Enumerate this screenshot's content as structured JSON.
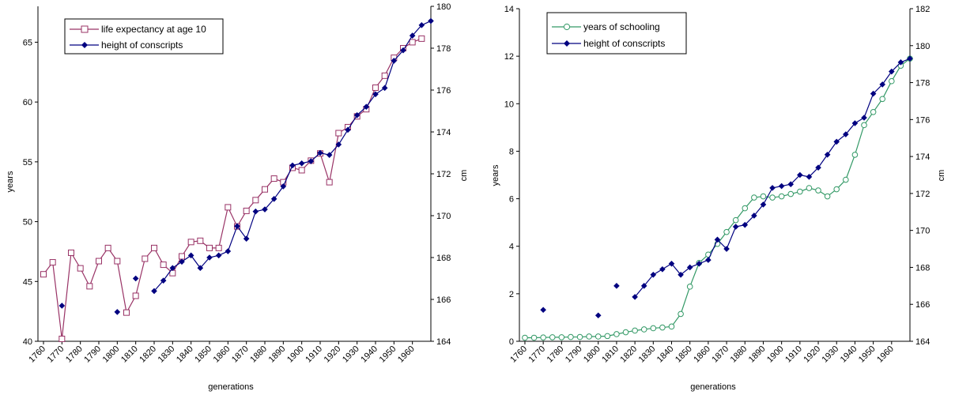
{
  "colors": {
    "maroon": "#993366",
    "navy": "#000080",
    "green": "#339966",
    "axis": "#000000"
  },
  "chart_data": [
    {
      "type": "line",
      "xlabel": "generations",
      "ylabel": "years",
      "y2label": "cm",
      "xlim": [
        1757,
        1970
      ],
      "ylim": [
        40,
        68
      ],
      "y2lim": [
        164,
        180
      ],
      "x_ticks": [
        1760,
        1770,
        1780,
        1790,
        1800,
        1810,
        1820,
        1830,
        1840,
        1850,
        1860,
        1870,
        1880,
        1890,
        1900,
        1910,
        1920,
        1930,
        1940,
        1950,
        1960
      ],
      "y_ticks": [
        40,
        45,
        50,
        55,
        60,
        65
      ],
      "y2_ticks": [
        164,
        166,
        168,
        170,
        172,
        174,
        176,
        178,
        180
      ],
      "legend_position": "top-left",
      "series": [
        {
          "name": "life expectancy at age 10",
          "axis": "left",
          "marker": "square",
          "color": "#993366",
          "x": [
            1760,
            1765,
            1770,
            1775,
            1780,
            1785,
            1790,
            1795,
            1800,
            1805,
            1810,
            1815,
            1820,
            1825,
            1830,
            1835,
            1840,
            1845,
            1850,
            1855,
            1860,
            1865,
            1870,
            1875,
            1880,
            1885,
            1890,
            1895,
            1900,
            1905,
            1910,
            1915,
            1920,
            1925,
            1930,
            1935,
            1940,
            1945,
            1950,
            1955,
            1960,
            1965
          ],
          "y": [
            45.6,
            46.6,
            40.2,
            47.4,
            46.1,
            44.6,
            46.7,
            47.8,
            46.7,
            42.4,
            43.8,
            46.9,
            47.8,
            46.4,
            45.7,
            47.1,
            48.3,
            48.4,
            47.8,
            47.8,
            51.2,
            49.6,
            50.9,
            51.8,
            52.7,
            53.6,
            53.3,
            54.5,
            54.3,
            55.1,
            55.7,
            53.3,
            57.4,
            57.9,
            58.8,
            59.4,
            61.2,
            62.2,
            63.7,
            64.5,
            65.0,
            65.3
          ]
        },
        {
          "name": "height of conscripts",
          "axis": "right",
          "marker": "diamond",
          "color": "#000080",
          "points": [
            [
              1770,
              165.7
            ],
            [
              1800,
              165.4
            ],
            [
              1810,
              167.0
            ],
            [
              1820,
              166.4
            ],
            [
              1825,
              166.9
            ],
            [
              1830,
              167.5
            ],
            [
              1835,
              167.8
            ],
            [
              1840,
              168.1
            ],
            [
              1845,
              167.5
            ],
            [
              1850,
              168.0
            ],
            [
              1855,
              168.1
            ],
            [
              1860,
              168.3
            ],
            [
              1865,
              169.5
            ],
            [
              1870,
              168.9
            ],
            [
              1875,
              170.2
            ],
            [
              1880,
              170.3
            ],
            [
              1885,
              170.8
            ],
            [
              1890,
              171.4
            ],
            [
              1895,
              172.4
            ],
            [
              1900,
              172.5
            ],
            [
              1905,
              172.6
            ],
            [
              1910,
              173.0
            ],
            [
              1915,
              172.9
            ],
            [
              1920,
              173.4
            ],
            [
              1925,
              174.1
            ],
            [
              1930,
              174.8
            ],
            [
              1935,
              175.2
            ],
            [
              1940,
              175.8
            ],
            [
              1945,
              176.1
            ],
            [
              1950,
              177.4
            ],
            [
              1955,
              177.9
            ],
            [
              1960,
              178.6
            ],
            [
              1965,
              179.1
            ],
            [
              1970,
              179.3
            ]
          ],
          "gaps_after": [
            1770,
            1800,
            1810
          ]
        }
      ]
    },
    {
      "type": "line",
      "xlabel": "generations",
      "ylabel": "years",
      "y2label": "cm",
      "xlim": [
        1757,
        1970
      ],
      "ylim": [
        0,
        14
      ],
      "y2lim": [
        164,
        182
      ],
      "x_ticks": [
        1760,
        1770,
        1780,
        1790,
        1800,
        1810,
        1820,
        1830,
        1840,
        1850,
        1860,
        1870,
        1880,
        1890,
        1900,
        1910,
        1920,
        1930,
        1940,
        1950,
        1960
      ],
      "y_ticks": [
        0,
        2,
        4,
        6,
        8,
        10,
        12,
        14
      ],
      "y2_ticks": [
        164,
        166,
        168,
        170,
        172,
        174,
        176,
        178,
        180,
        182
      ],
      "legend_position": "top-left",
      "series": [
        {
          "name": "years of schooling",
          "axis": "left",
          "marker": "circle",
          "color": "#339966",
          "x": [
            1760,
            1765,
            1770,
            1775,
            1780,
            1785,
            1790,
            1795,
            1800,
            1805,
            1810,
            1815,
            1820,
            1825,
            1830,
            1835,
            1840,
            1845,
            1850,
            1855,
            1860,
            1865,
            1870,
            1875,
            1880,
            1885,
            1890,
            1895,
            1900,
            1905,
            1910,
            1915,
            1920,
            1925,
            1930,
            1935,
            1940,
            1945,
            1950,
            1955,
            1960,
            1965,
            1970
          ],
          "y": [
            0.15,
            0.15,
            0.16,
            0.17,
            0.17,
            0.18,
            0.18,
            0.2,
            0.2,
            0.22,
            0.3,
            0.38,
            0.45,
            0.5,
            0.55,
            0.58,
            0.62,
            1.15,
            2.3,
            3.3,
            3.65,
            4.1,
            4.6,
            5.1,
            5.6,
            6.05,
            6.1,
            6.05,
            6.1,
            6.2,
            6.3,
            6.45,
            6.35,
            6.1,
            6.4,
            6.8,
            7.85,
            9.1,
            9.65,
            10.2,
            10.95,
            11.6,
            11.9
          ]
        },
        {
          "name": "height of conscripts",
          "axis": "right",
          "marker": "diamond",
          "color": "#000080",
          "points": [
            [
              1770,
              165.7
            ],
            [
              1800,
              165.4
            ],
            [
              1810,
              167.0
            ],
            [
              1820,
              166.4
            ],
            [
              1825,
              167.0
            ],
            [
              1830,
              167.6
            ],
            [
              1835,
              167.9
            ],
            [
              1840,
              168.2
            ],
            [
              1845,
              167.6
            ],
            [
              1850,
              168.0
            ],
            [
              1855,
              168.2
            ],
            [
              1860,
              168.4
            ],
            [
              1865,
              169.5
            ],
            [
              1870,
              169.0
            ],
            [
              1875,
              170.2
            ],
            [
              1880,
              170.3
            ],
            [
              1885,
              170.8
            ],
            [
              1890,
              171.4
            ],
            [
              1895,
              172.3
            ],
            [
              1900,
              172.4
            ],
            [
              1905,
              172.5
            ],
            [
              1910,
              173.0
            ],
            [
              1915,
              172.9
            ],
            [
              1920,
              173.4
            ],
            [
              1925,
              174.1
            ],
            [
              1930,
              174.8
            ],
            [
              1935,
              175.2
            ],
            [
              1940,
              175.8
            ],
            [
              1945,
              176.1
            ],
            [
              1950,
              177.4
            ],
            [
              1955,
              177.9
            ],
            [
              1960,
              178.6
            ],
            [
              1965,
              179.1
            ],
            [
              1970,
              179.3
            ]
          ],
          "gaps_after": [
            1770,
            1800,
            1810
          ]
        }
      ]
    }
  ]
}
